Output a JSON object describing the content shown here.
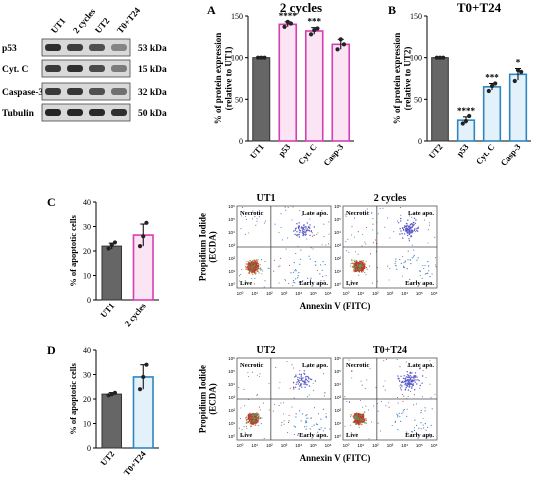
{
  "blot": {
    "lanes": [
      "UT1",
      "2 cycles",
      "UT2",
      "T0+T24"
    ],
    "proteins": [
      {
        "name": "p53",
        "kda": "53 kDa",
        "intensity": [
          0.85,
          0.78,
          0.7,
          0.45
        ]
      },
      {
        "name": "Cyt. C",
        "kda": "15 kDa",
        "intensity": [
          0.8,
          0.85,
          0.72,
          0.5
        ]
      },
      {
        "name": "Caspase-3",
        "kda": "32 kDa",
        "intensity": [
          0.8,
          0.82,
          0.7,
          0.55
        ]
      },
      {
        "name": "Tubulin",
        "kda": "50 kDa",
        "intensity": [
          0.9,
          0.9,
          0.88,
          0.85
        ]
      }
    ]
  },
  "chart_data": [
    {
      "panel": "A",
      "type": "bar",
      "title": "2 cycles",
      "ylabel": "% of protein expression (relative to UT1)",
      "categories": [
        "UT1",
        "p53",
        "Cyt. C",
        "Casp-3"
      ],
      "values": [
        100,
        140,
        132,
        116
      ],
      "points": [
        [
          100,
          100,
          100
        ],
        [
          137,
          143,
          141
        ],
        [
          128,
          133,
          135
        ],
        [
          110,
          122,
          116
        ]
      ],
      "errors": [
        0,
        3,
        4,
        6
      ],
      "significance": [
        "",
        "****",
        "***",
        ""
      ],
      "ylim": [
        0,
        150
      ],
      "yticks": [
        0,
        50,
        100,
        150
      ],
      "colors": {
        "control": "#666666",
        "treated": "#d63fb1",
        "treated_fill": "#fbe4f4"
      }
    },
    {
      "panel": "B",
      "type": "bar",
      "title": "T0+T24",
      "ylabel": "% of protein expression (relative to UT2)",
      "categories": [
        "UT2",
        "p53",
        "Cyt. C",
        "Casp-3"
      ],
      "values": [
        100,
        25,
        65,
        80
      ],
      "points": [
        [
          100,
          100,
          100
        ],
        [
          21,
          24,
          30
        ],
        [
          60,
          66,
          69
        ],
        [
          72,
          85,
          83
        ]
      ],
      "errors": [
        0,
        4,
        4,
        7
      ],
      "significance": [
        "",
        "****",
        "***",
        "*"
      ],
      "ylim": [
        0,
        150
      ],
      "yticks": [
        0,
        50,
        100,
        150
      ],
      "colors": {
        "control": "#666666",
        "treated": "#2e86c1",
        "treated_fill": "#e3f1fb"
      }
    },
    {
      "panel": "C",
      "type": "bar",
      "title": "",
      "ylabel": "% of apoptotic cells",
      "categories": [
        "UT1",
        "2 cycles"
      ],
      "values": [
        22,
        26.5
      ],
      "points": [
        [
          21,
          22.5,
          23.5
        ],
        [
          22,
          26,
          31.5
        ]
      ],
      "errors": [
        1.2,
        4.5
      ],
      "significance": [
        "",
        ""
      ],
      "ylim": [
        0,
        40
      ],
      "yticks": [
        0,
        10,
        20,
        30,
        40
      ],
      "colors": {
        "control": "#666666",
        "treated": "#d63fb1",
        "treated_fill": "#fbe4f4"
      }
    },
    {
      "panel": "D",
      "type": "bar",
      "title": "",
      "ylabel": "% of apoptotic cells",
      "categories": [
        "UT2",
        "T0+T24"
      ],
      "values": [
        22,
        29
      ],
      "points": [
        [
          21.5,
          22,
          22.5
        ],
        [
          24,
          29,
          34
        ]
      ],
      "errors": [
        0.6,
        5
      ],
      "significance": [
        "",
        ""
      ],
      "ylim": [
        0,
        40
      ],
      "yticks": [
        0,
        10,
        20,
        30,
        40
      ],
      "colors": {
        "control": "#666666",
        "treated": "#2e86c1",
        "treated_fill": "#e3f1fb"
      }
    },
    {
      "panel": "flow",
      "type": "scatter",
      "xlabel": "Annexin V (FITC)",
      "ylabel": "Propidium Iodide (ECDA)",
      "quadrants": [
        "Necrotic",
        "Late apo.",
        "Live",
        "Early apo."
      ],
      "ticks": [
        "10⁰",
        "10¹",
        "10²",
        "10³",
        "10⁴",
        "10⁵",
        "10⁶"
      ],
      "plots": [
        {
          "label": "UT1",
          "row": 0,
          "col": 0
        },
        {
          "label": "2 cycles",
          "row": 0,
          "col": 1
        },
        {
          "label": "UT2",
          "row": 1,
          "col": 0
        },
        {
          "label": "T0+T24",
          "row": 1,
          "col": 1
        }
      ]
    }
  ],
  "panel_letters": [
    "A",
    "B",
    "C",
    "D"
  ]
}
